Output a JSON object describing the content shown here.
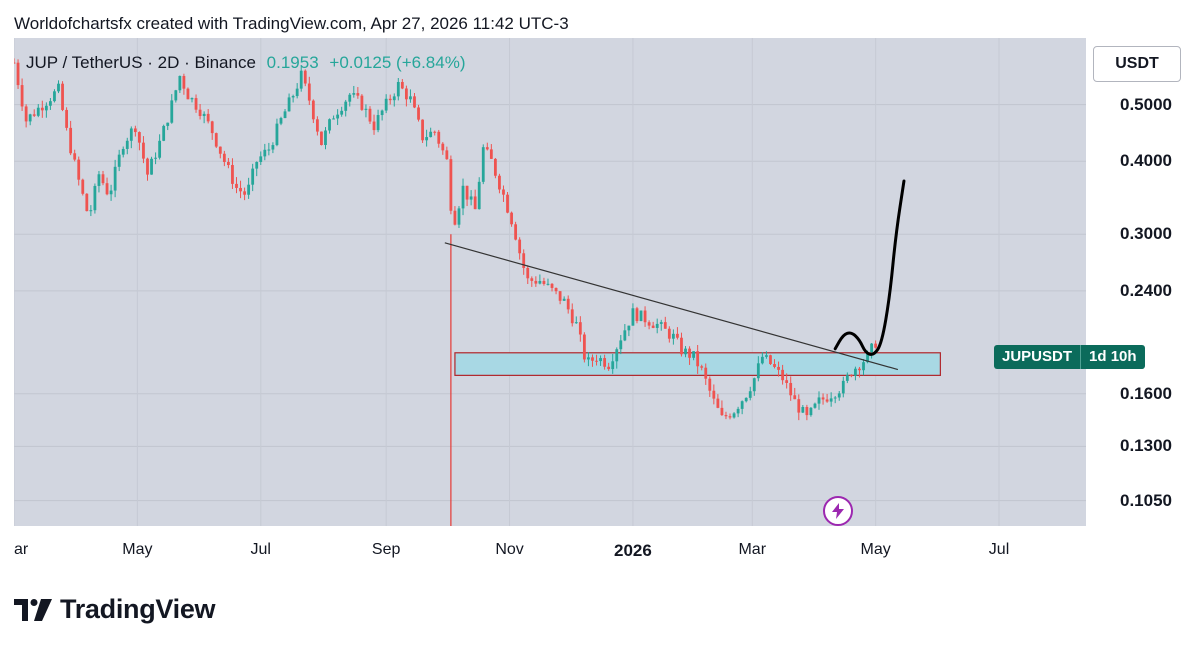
{
  "header": {
    "attribution": "Worldofchartsfx created with TradingView.com, Apr 27, 2026 11:42 UTC-3"
  },
  "legend": {
    "symbol": "JUP / TetherUS · 2D · Binance",
    "price": "0.1953",
    "change": "+0.0125 (+6.84%)"
  },
  "currency": "USDT",
  "symbol_tag": {
    "ticker": "JUPUSDT",
    "countdown": "1d 10h"
  },
  "footer": {
    "brand": "TradingView"
  },
  "colors": {
    "plot_background": "#d2d6e0",
    "up": "#26a69a",
    "down": "#ef5350",
    "zone_fill": "#a8d8e4",
    "zone_border": "#b0252a",
    "vertical_marker": "#e53935",
    "trendline": "#333333",
    "projection": "#000000"
  },
  "chart_data": {
    "type": "candlestick",
    "scale": "log",
    "exchange": "Binance",
    "interval": "2D",
    "y_ticks": [
      {
        "value": 0.5,
        "label": "0.5000"
      },
      {
        "value": 0.4,
        "label": "0.4000"
      },
      {
        "value": 0.3,
        "label": "0.3000"
      },
      {
        "value": 0.24,
        "label": "0.2400"
      },
      {
        "value": 0.16,
        "label": "0.1600"
      },
      {
        "value": 0.13,
        "label": "0.1300"
      },
      {
        "value": 0.105,
        "label": "0.1050"
      }
    ],
    "x_ticks": [
      {
        "t": 0,
        "label": "ar",
        "bold": false
      },
      {
        "t": 61,
        "label": "May",
        "bold": false
      },
      {
        "t": 122,
        "label": "Jul",
        "bold": false
      },
      {
        "t": 184,
        "label": "Sep",
        "bold": false
      },
      {
        "t": 245,
        "label": "Nov",
        "bold": false
      },
      {
        "t": 306,
        "label": "2026",
        "bold": true
      },
      {
        "t": 365,
        "label": "Mar",
        "bold": false
      },
      {
        "t": 426,
        "label": "May",
        "bold": false
      },
      {
        "t": 487,
        "label": "Jul",
        "bold": false
      }
    ],
    "ylim": [
      0.095,
      0.65
    ],
    "xlim": [
      0,
      530
    ],
    "candles_interval_days": 2,
    "price_path": [
      [
        0,
        0.59
      ],
      [
        6,
        0.47
      ],
      [
        14,
        0.5
      ],
      [
        22,
        0.53
      ],
      [
        26,
        0.45
      ],
      [
        32,
        0.37
      ],
      [
        37,
        0.32
      ],
      [
        42,
        0.38
      ],
      [
        47,
        0.35
      ],
      [
        54,
        0.43
      ],
      [
        60,
        0.46
      ],
      [
        66,
        0.38
      ],
      [
        72,
        0.43
      ],
      [
        78,
        0.5
      ],
      [
        82,
        0.56
      ],
      [
        86,
        0.52
      ],
      [
        92,
        0.49
      ],
      [
        98,
        0.45
      ],
      [
        104,
        0.4
      ],
      [
        110,
        0.36
      ],
      [
        115,
        0.35
      ],
      [
        120,
        0.4
      ],
      [
        126,
        0.42
      ],
      [
        132,
        0.47
      ],
      [
        138,
        0.52
      ],
      [
        142,
        0.56
      ],
      [
        146,
        0.51
      ],
      [
        152,
        0.43
      ],
      [
        158,
        0.48
      ],
      [
        166,
        0.52
      ],
      [
        172,
        0.5
      ],
      [
        178,
        0.46
      ],
      [
        184,
        0.5
      ],
      [
        190,
        0.54
      ],
      [
        196,
        0.51
      ],
      [
        202,
        0.44
      ],
      [
        208,
        0.45
      ],
      [
        214,
        0.4
      ],
      [
        217,
        0.31
      ],
      [
        222,
        0.36
      ],
      [
        228,
        0.33
      ],
      [
        232,
        0.42
      ],
      [
        236,
        0.4
      ],
      [
        242,
        0.35
      ],
      [
        247,
        0.31
      ],
      [
        251,
        0.27
      ],
      [
        254,
        0.25
      ],
      [
        260,
        0.25
      ],
      [
        266,
        0.24
      ],
      [
        272,
        0.23
      ],
      [
        278,
        0.21
      ],
      [
        283,
        0.18
      ],
      [
        288,
        0.185
      ],
      [
        294,
        0.18
      ],
      [
        300,
        0.2
      ],
      [
        306,
        0.22
      ],
      [
        312,
        0.215
      ],
      [
        318,
        0.21
      ],
      [
        322,
        0.205
      ],
      [
        326,
        0.2
      ],
      [
        330,
        0.19
      ],
      [
        336,
        0.185
      ],
      [
        340,
        0.175
      ],
      [
        346,
        0.155
      ],
      [
        350,
        0.145
      ],
      [
        356,
        0.15
      ],
      [
        362,
        0.16
      ],
      [
        366,
        0.17
      ],
      [
        370,
        0.185
      ],
      [
        374,
        0.18
      ],
      [
        380,
        0.17
      ],
      [
        386,
        0.155
      ],
      [
        392,
        0.145
      ],
      [
        398,
        0.155
      ],
      [
        404,
        0.16
      ],
      [
        410,
        0.165
      ],
      [
        414,
        0.175
      ],
      [
        418,
        0.18
      ],
      [
        422,
        0.185
      ],
      [
        426,
        0.196
      ]
    ],
    "annotations": {
      "vertical_marker": {
        "t": 216
      },
      "support_zone": {
        "t_start": 218,
        "t_end": 458,
        "top": 0.188,
        "bottom": 0.172
      },
      "trendline": {
        "t_start": 213,
        "v_start": 0.29,
        "t_end": 437,
        "v_end": 0.176
      },
      "projection": [
        [
          406,
          0.191
        ],
        [
          410,
          0.202
        ],
        [
          414,
          0.204
        ],
        [
          418,
          0.198
        ],
        [
          421,
          0.188
        ],
        [
          425,
          0.186
        ],
        [
          429,
          0.195
        ],
        [
          433,
          0.235
        ],
        [
          436,
          0.3
        ],
        [
          440,
          0.37
        ]
      ]
    }
  }
}
